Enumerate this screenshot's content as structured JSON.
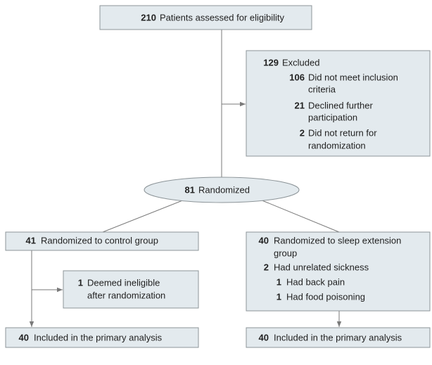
{
  "assessed": {
    "count": 210,
    "text": "Patients assessed for eligibility"
  },
  "excluded": {
    "count": 129,
    "text": "Excluded",
    "reasons": [
      {
        "count": 106,
        "lines": [
          "Did not meet inclusion",
          "criteria"
        ]
      },
      {
        "count": 21,
        "lines": [
          "Declined further",
          "participation"
        ]
      },
      {
        "count": 2,
        "lines": [
          "Did not return for",
          "randomization"
        ]
      }
    ]
  },
  "randomized": {
    "count": 81,
    "text": "Randomized"
  },
  "control": {
    "allocated": {
      "count": 41,
      "text": "Randomized to control group"
    },
    "excluded": {
      "count": 1,
      "lines": [
        "Deemed ineligible",
        "after randomization"
      ]
    },
    "analyzed": {
      "count": 40,
      "text": "Included in the primary analysis"
    }
  },
  "intervention": {
    "allocated": {
      "count": 40,
      "lines": [
        "Randomized to sleep extension",
        "group"
      ]
    },
    "sickness": {
      "count": 2,
      "text": "Had unrelated sickness",
      "items": [
        {
          "count": 1,
          "text": "Had back pain"
        },
        {
          "count": 1,
          "text": "Had food poisoning"
        }
      ]
    },
    "analyzed": {
      "count": 40,
      "text": "Included in the primary analysis"
    }
  }
}
